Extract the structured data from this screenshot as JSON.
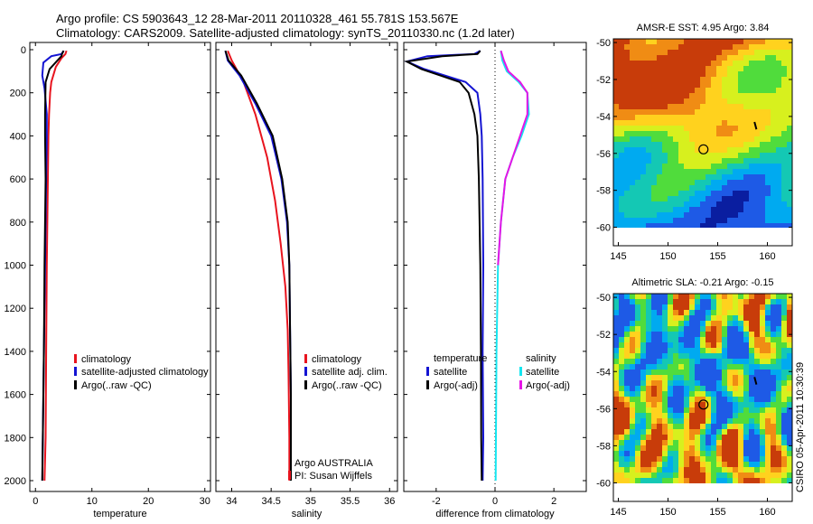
{
  "header": {
    "line1": "Argo profile: CS 5903643_12 28-Mar-2011 20110328_461 55.781S 153.567E",
    "line2": "Climatology: CARS2009. Satellite-adjusted climatology: synTS_20110330.nc (1.2d later)"
  },
  "stamp": "CSIRO 05-Apr-2011 10:30:39",
  "colors": {
    "red": "#e8141e",
    "blue": "#1414d2",
    "black": "#000000",
    "cyan": "#14e6f0",
    "magenta": "#e614e6"
  },
  "chart_data": [
    {
      "type": "line",
      "xlabel": "temperature",
      "xlim": [
        -1,
        31
      ],
      "xticks": [
        0,
        10,
        20,
        30
      ],
      "ylim": [
        2060,
        0
      ],
      "yticks": [
        0,
        200,
        400,
        600,
        800,
        1000,
        1200,
        1400,
        1600,
        1800,
        2000
      ],
      "legend": [
        "climatology",
        "satellite-adjusted climatology",
        "Argo(..raw -QC)"
      ],
      "series": [
        {
          "name": "climatology",
          "color": "red",
          "x": [
            5.5,
            5.3,
            4.6,
            3.6,
            2.8,
            2.6,
            2.4,
            2.3,
            2.2,
            2.1,
            2.0,
            1.9,
            1.8,
            1.6
          ],
          "y": [
            5,
            20,
            40,
            80,
            150,
            200,
            300,
            400,
            600,
            800,
            1000,
            1400,
            1800,
            2000
          ]
        },
        {
          "name": "satellite-adjusted climatology",
          "color": "blue",
          "x": [
            5.0,
            4.6,
            2.8,
            1.4,
            1.2,
            1.6,
            2.0,
            2.0,
            1.9,
            1.8,
            1.7,
            1.5,
            1.3,
            1.2
          ],
          "y": [
            5,
            20,
            30,
            60,
            120,
            180,
            300,
            400,
            600,
            800,
            1000,
            1400,
            1800,
            2000
          ]
        },
        {
          "name": "Argo(..raw -QC)",
          "color": "black",
          "x": [
            5.0,
            4.7,
            4.6,
            3.9,
            2.5,
            1.8,
            1.7,
            1.7,
            1.8,
            1.7,
            1.6,
            1.5,
            1.3,
            1.2
          ],
          "y": [
            5,
            20,
            30,
            50,
            90,
            150,
            300,
            400,
            600,
            800,
            1000,
            1400,
            1800,
            2000
          ]
        }
      ]
    },
    {
      "type": "line",
      "xlabel": "salinity",
      "xlim": [
        33.8,
        36.1
      ],
      "xticks": [
        34,
        34.5,
        35,
        35.5,
        36
      ],
      "ylim": [
        2060,
        0
      ],
      "yticks": [
        0,
        200,
        400,
        600,
        800,
        1000,
        1200,
        1400,
        1600,
        1800,
        2000
      ],
      "legend": [
        "climatology",
        "satellite adj. clim.",
        "Argo(..raw -QC)"
      ],
      "annotations": [
        "Argo AUSTRALIA",
        "PI: Susan Wijffels"
      ],
      "series": [
        {
          "name": "climatology",
          "color": "red",
          "x": [
            33.95,
            34.0,
            34.15,
            34.3,
            34.45,
            34.55,
            34.62,
            34.68,
            34.71,
            34.72,
            34.73,
            34.73
          ],
          "y": [
            5,
            50,
            150,
            300,
            500,
            700,
            900,
            1100,
            1300,
            1500,
            1800,
            2000
          ]
        },
        {
          "name": "satellite adj. clim.",
          "color": "blue",
          "x": [
            33.92,
            33.95,
            34.1,
            34.3,
            34.5,
            34.63,
            34.7,
            34.73,
            34.74,
            34.75,
            34.75
          ],
          "y": [
            5,
            50,
            120,
            250,
            400,
            600,
            800,
            1000,
            1300,
            1600,
            2000
          ]
        },
        {
          "name": "Argo(..raw -QC)",
          "color": "black",
          "x": [
            33.92,
            33.96,
            34.12,
            34.32,
            34.52,
            34.64,
            34.71,
            34.73,
            34.74,
            34.75,
            34.75
          ],
          "y": [
            5,
            50,
            120,
            250,
            400,
            600,
            800,
            1000,
            1300,
            1600,
            2000
          ]
        }
      ]
    },
    {
      "type": "line",
      "xlabel": "difference from climatology",
      "xlim": [
        -3.1,
        3.1
      ],
      "xticks": [
        -2,
        0,
        2
      ],
      "ylim": [
        2060,
        0
      ],
      "yticks": [
        0,
        200,
        400,
        600,
        800,
        1000,
        1200,
        1400,
        1600,
        1800,
        2000
      ],
      "legend": {
        "temperature": {
          "heading": "temperature",
          "items": [
            "satellite",
            "Argo(-adj)"
          ]
        },
        "salinity": {
          "heading": "salinity",
          "items": [
            "satellite",
            "Argo(-adj)"
          ]
        }
      },
      "series": [
        {
          "name": "temperature satellite",
          "color": "blue",
          "x": [
            -0.5,
            -0.7,
            -2.3,
            -3.0,
            -2.4,
            -1.0,
            -0.6,
            -0.5,
            -0.45,
            -0.42,
            -0.4,
            -0.42,
            -0.4,
            -0.42
          ],
          "y": [
            5,
            20,
            30,
            55,
            90,
            150,
            200,
            300,
            400,
            600,
            1000,
            1400,
            1800,
            2000
          ]
        },
        {
          "name": "temperature Argo(-adj)",
          "color": "black",
          "x": [
            -0.5,
            -0.6,
            -1.8,
            -3.0,
            -2.5,
            -1.2,
            -0.9,
            -0.7,
            -0.6,
            -0.55,
            -0.5,
            -0.48,
            -0.47,
            -0.45
          ],
          "y": [
            5,
            20,
            30,
            55,
            90,
            150,
            200,
            300,
            400,
            600,
            1000,
            1400,
            1800,
            2000
          ]
        },
        {
          "name": "salinity satellite",
          "color": "cyan",
          "x": [
            0.2,
            0.25,
            0.4,
            0.8,
            1.1,
            1.15,
            0.9,
            0.6,
            0.35,
            0.2,
            0.1,
            0.05,
            0.03,
            0.02
          ],
          "y": [
            5,
            50,
            100,
            150,
            200,
            300,
            400,
            500,
            600,
            800,
            1000,
            1400,
            1800,
            2000
          ]
        },
        {
          "name": "salinity Argo(-adj)",
          "color": "magenta",
          "x": [
            0.2,
            0.3,
            0.45,
            0.85,
            1.1,
            1.1,
            0.85,
            0.6,
            0.35,
            0.2,
            0.1
          ],
          "y": [
            5,
            50,
            100,
            150,
            200,
            300,
            400,
            500,
            600,
            800,
            1000
          ]
        }
      ]
    },
    {
      "type": "heatmap",
      "title": "AMSR-E SST: 4.95 Argo: 3.84",
      "xlim": [
        144.5,
        162.5
      ],
      "ylim": [
        -61,
        -49.8
      ],
      "xticks": [
        145,
        150,
        155,
        160
      ],
      "yticks": [
        -50,
        -52,
        -54,
        -56,
        -58,
        -60
      ],
      "data_extent": {
        "lon": [
          144.5,
          162.5
        ],
        "lat": [
          -60,
          -49.8
        ]
      },
      "marker": {
        "lon": 153.567,
        "lat": -55.781
      },
      "colors": [
        "#0a1ea0",
        "#1e5ae6",
        "#00aaf0",
        "#14c8b4",
        "#50dc3c",
        "#d7f01e",
        "#ffd21e",
        "#f08c14",
        "#c83c0a"
      ]
    },
    {
      "type": "heatmap",
      "title": "Altimetric SLA: -0.21 Argo: -0.15",
      "xlim": [
        144.5,
        162.5
      ],
      "ylim": [
        -61,
        -49.8
      ],
      "xticks": [
        145,
        150,
        155,
        160
      ],
      "yticks": [
        -50,
        -52,
        -54,
        -56,
        -58,
        -60
      ],
      "data_extent": {
        "lon": [
          144.5,
          162.5
        ],
        "lat": [
          -60,
          -49.8
        ]
      },
      "marker": {
        "lon": 153.567,
        "lat": -55.781
      },
      "colors": [
        "#1e5ae6",
        "#00aaf0",
        "#14c8b4",
        "#50dc3c",
        "#d7f01e",
        "#ffd21e",
        "#f08c14",
        "#c83c0a"
      ]
    }
  ]
}
